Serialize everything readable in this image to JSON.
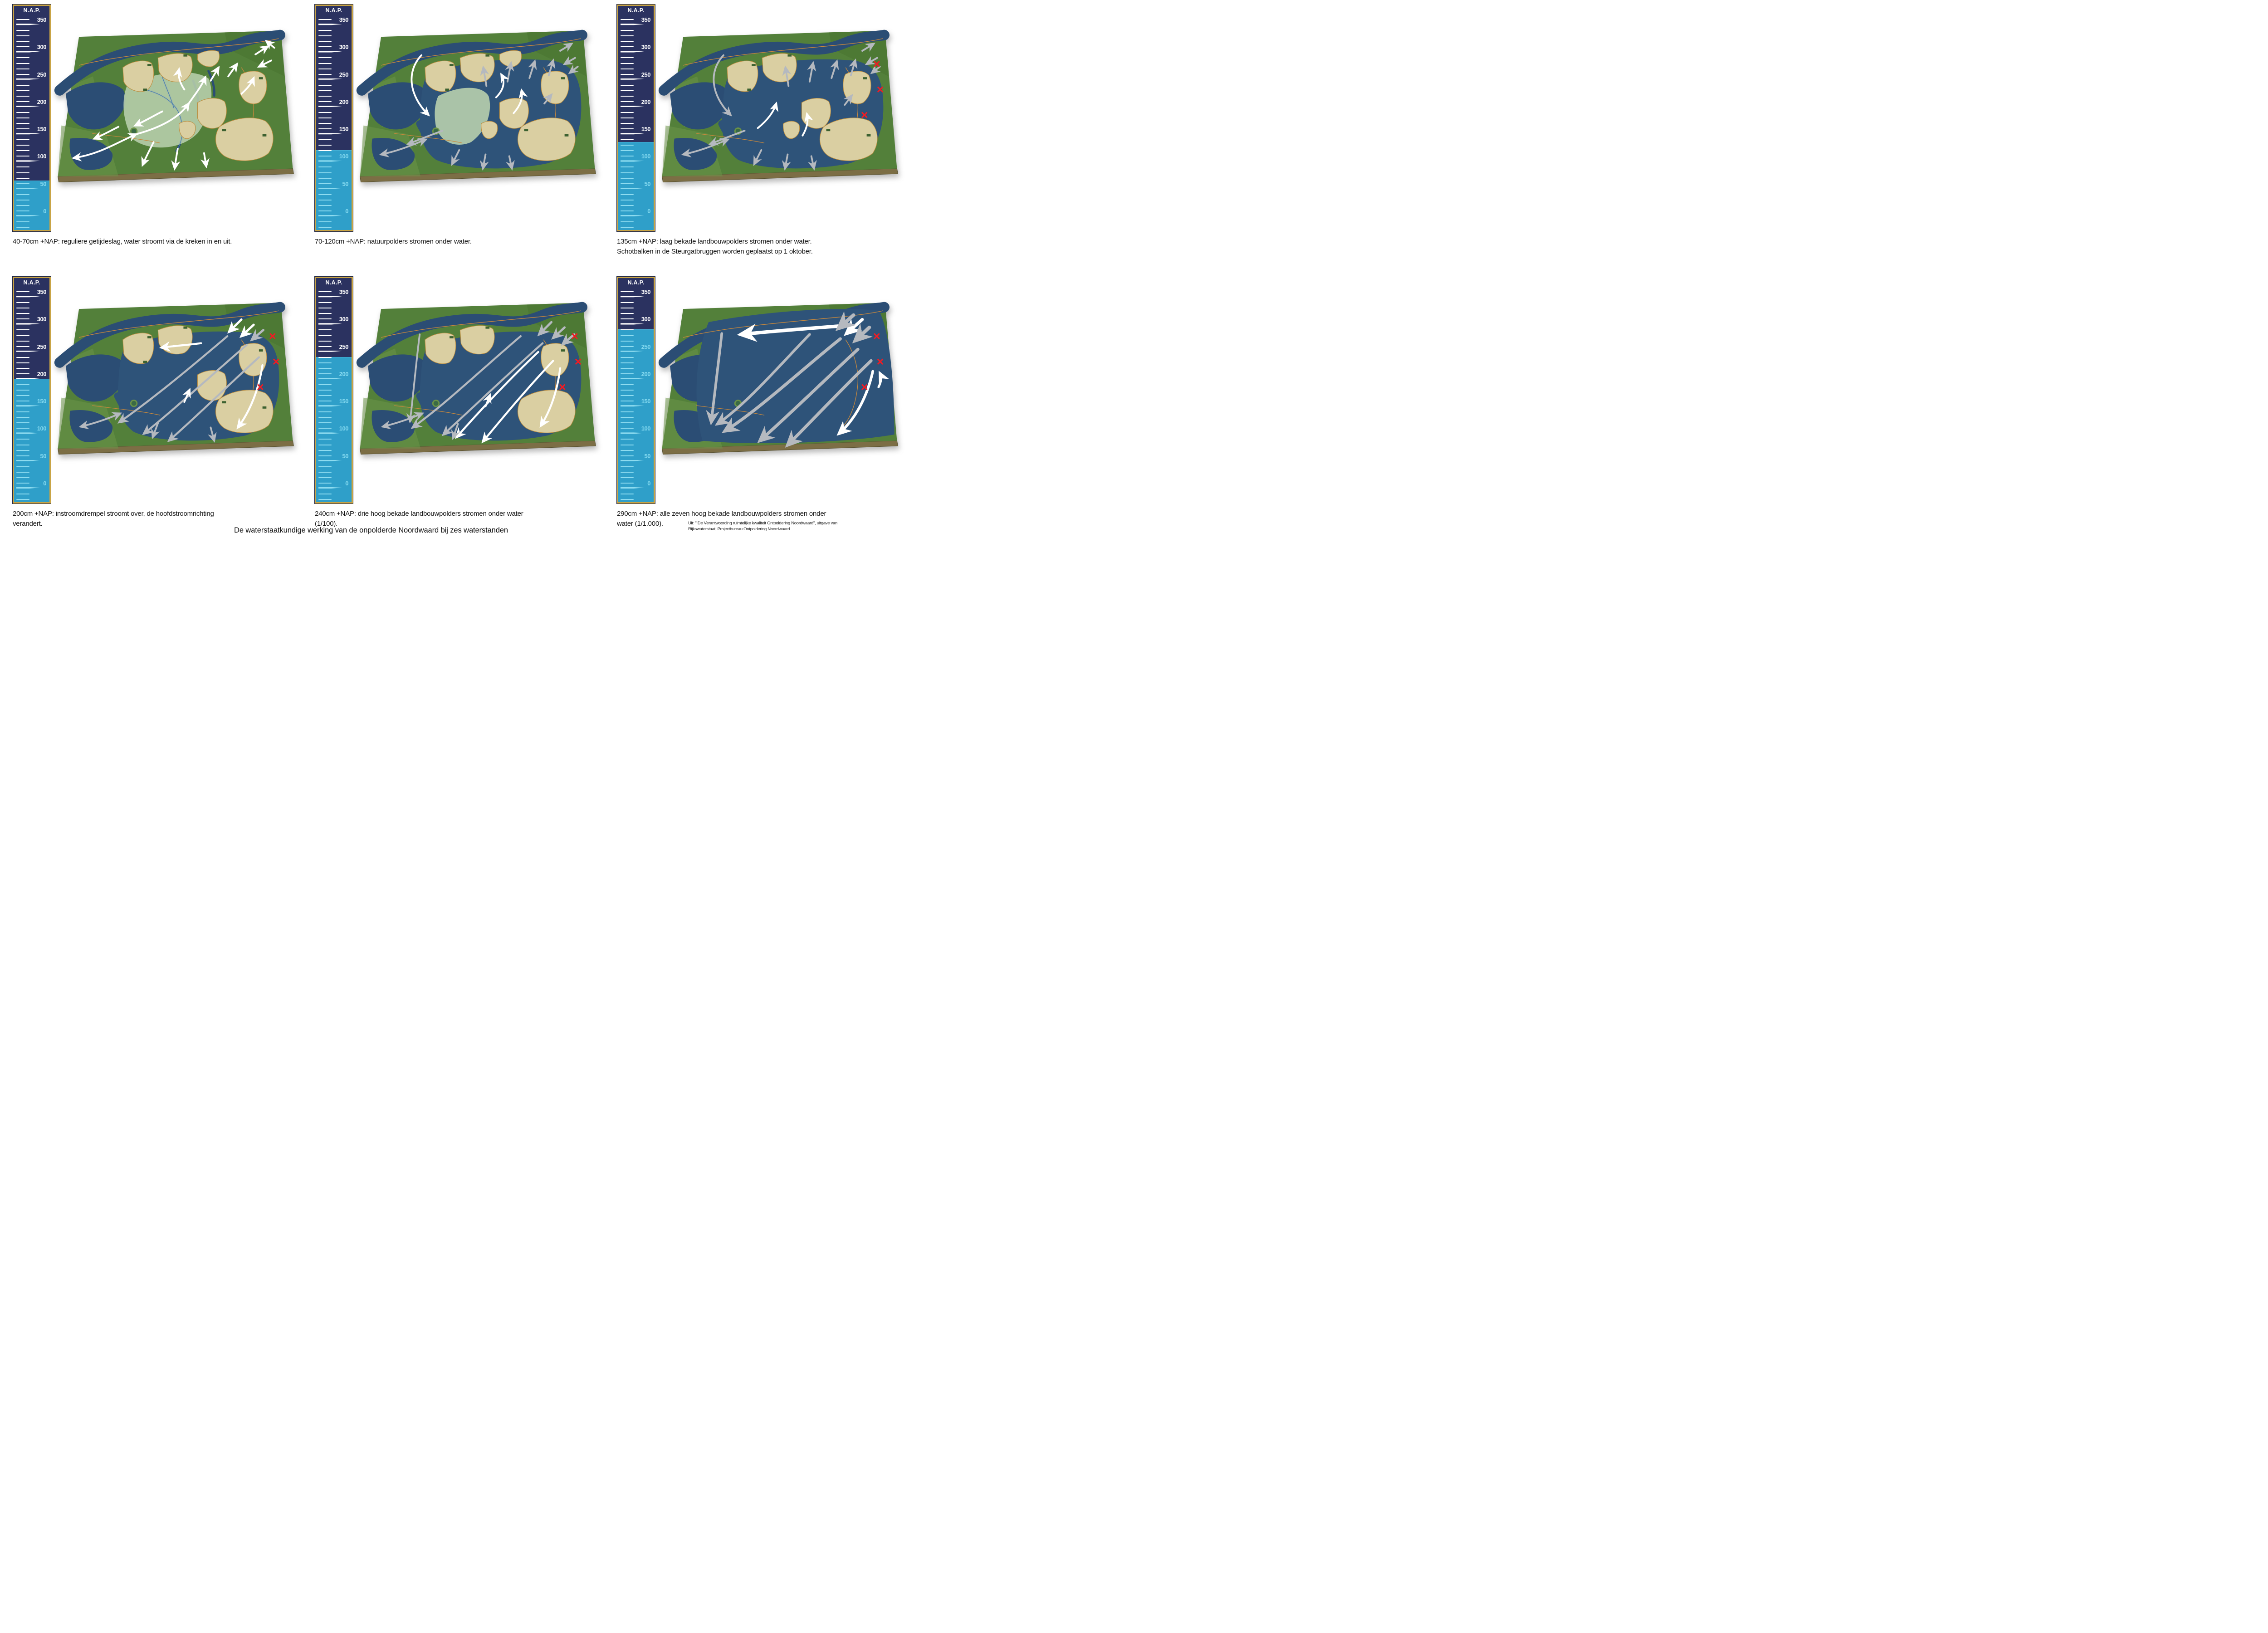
{
  "page": {
    "title": "De waterstaatkundige werking van de onpolderde Noordwaard bij zes waterstanden",
    "attribution": "Uit: \" De Verantwoording ruimtelijke kwaliteit Ontpoldering Noordwaard\", uitgave van\nRijkswaterstaat, Projectbureau Ontpoldering Noordwaard"
  },
  "gauge": {
    "title": "N.A.P.",
    "unit": "cm",
    "scale_min": 0,
    "scale_max": 350,
    "tick_step": 10,
    "major_step": 50,
    "major_labels": [
      350,
      300,
      250,
      200,
      150,
      100,
      50,
      0
    ],
    "colors": {
      "body": "#2b3260",
      "water": "#2f9fc9",
      "border": "#c9a445",
      "tick_dry": "#ffffff",
      "tick_wet": "#8edcf0"
    }
  },
  "map_colors": {
    "land_green": "#53803a",
    "land_light": "#6b9449",
    "water_navy": "#2b4d74",
    "flood_blue": "#2e5379",
    "polder_beige": "#dacfa2",
    "polder_outline": "#bb8e41",
    "nature_green": "#b8cfad",
    "dike_orange": "#c8883c",
    "board_edge_brown": "#7c6e45",
    "arrow_white": "#ffffff",
    "arrow_gray": "#b5b9bf",
    "closed_x_red": "#ee1c24"
  },
  "panels": [
    {
      "caption": "40-70cm +NAP: reguliere getijdeslag, water stroomt via de kreken in en uit.",
      "water_level_cm": 65,
      "flood_stage": 0,
      "arrow_palette": "white",
      "red_x_count": 0
    },
    {
      "caption": "70-120cm +NAP: natuurpolders stromen onder water.",
      "water_level_cm": 120,
      "flood_stage": 1,
      "arrow_palette": "gray",
      "red_x_count": 0
    },
    {
      "caption": "135cm +NAP: laag bekade landbouwpolders stromen onder water.\nSchotbalken in de Steurgatbruggen worden geplaatst op 1 oktober.",
      "water_level_cm": 135,
      "flood_stage": 2,
      "arrow_palette": "gray",
      "red_x_count": 3
    },
    {
      "caption": "200cm +NAP: instroomdrempel stroomt over, de hoofdstroomrichting\nverandert.",
      "water_level_cm": 200,
      "flood_stage": 3,
      "arrow_palette": "mixed",
      "red_x_count": 3
    },
    {
      "caption": "240cm +NAP: drie hoog bekade landbouwpolders stromen onder water\n(1/100).",
      "water_level_cm": 240,
      "flood_stage": 4,
      "arrow_palette": "mixed",
      "red_x_count": 3
    },
    {
      "caption": "290cm +NAP: alle zeven hoog bekade landbouwpolders stromen onder\nwater (1/1.000).",
      "water_level_cm": 290,
      "flood_stage": 5,
      "arrow_palette": "bold",
      "red_x_count": 3
    }
  ]
}
